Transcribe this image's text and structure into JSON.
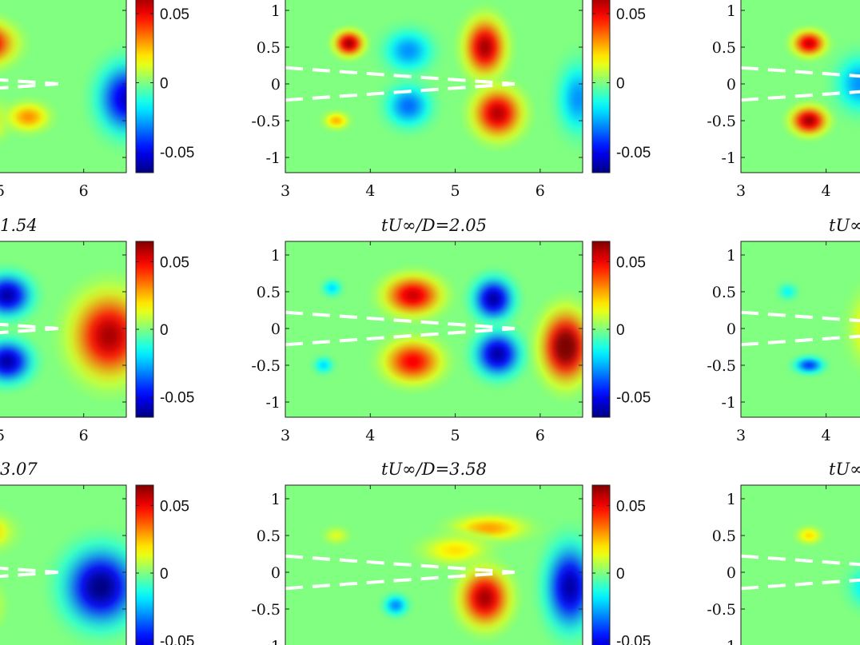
{
  "chart_data": {
    "type": "heatmap",
    "layout": "3x3 grid of contour panels, cropped",
    "colormap": "jet",
    "colors": {
      "dashed_lines": "#ffffff",
      "axes": "#222222"
    },
    "clim": [
      -0.065,
      0.065
    ],
    "colorbar": {
      "ticks": [
        0.05,
        0,
        -0.05
      ],
      "tick_labels": [
        "0.05",
        "0",
        "-0.05"
      ]
    },
    "xlim": [
      3,
      6.5
    ],
    "ylim": [
      -1.2,
      1.2
    ],
    "xticks": [
      3,
      4,
      5,
      6
    ],
    "xtick_labels": [
      "3",
      "4",
      "5",
      "6"
    ],
    "yticks": [
      1,
      0.5,
      0,
      -0.5,
      -1
    ],
    "ytick_labels": [
      "1",
      "0.5",
      "0",
      "-0.5",
      "-1"
    ],
    "partial_labels": {
      "left_col_x5": "5"
    },
    "dashed_lines": [
      {
        "x": [
          3,
          5.7
        ],
        "y": [
          0.22,
          0.0
        ]
      },
      {
        "x": [
          3,
          5.7
        ],
        "y": [
          -0.22,
          0.0
        ]
      }
    ],
    "rows": [
      {
        "titles": [
          "",
          "",
          ""
        ],
        "panels": [
          {
            "blobs": [
              {
                "x": 4.85,
                "y": 0.55,
                "a": 0.058,
                "sx": 0.35,
                "sy": 0.3
              },
              {
                "x": 4.7,
                "y": -0.5,
                "a": 0.05,
                "sx": 0.35,
                "sy": 0.28
              },
              {
                "x": 6.5,
                "y": -0.2,
                "a": -0.055,
                "sx": 0.35,
                "sy": 0.5
              },
              {
                "x": 5.35,
                "y": -0.45,
                "a": 0.03,
                "sx": 0.25,
                "sy": 0.2
              }
            ]
          },
          {
            "blobs": [
              {
                "x": 3.75,
                "y": 0.55,
                "a": 0.06,
                "sx": 0.18,
                "sy": 0.18
              },
              {
                "x": 3.6,
                "y": -0.5,
                "a": 0.025,
                "sx": 0.15,
                "sy": 0.12
              },
              {
                "x": 4.45,
                "y": 0.45,
                "a": -0.03,
                "sx": 0.3,
                "sy": 0.3
              },
              {
                "x": 4.45,
                "y": -0.3,
                "a": -0.035,
                "sx": 0.28,
                "sy": 0.3
              },
              {
                "x": 5.35,
                "y": 0.5,
                "a": 0.06,
                "sx": 0.25,
                "sy": 0.4
              },
              {
                "x": 5.5,
                "y": -0.4,
                "a": 0.058,
                "sx": 0.3,
                "sy": 0.35
              },
              {
                "x": 6.45,
                "y": -0.2,
                "a": -0.03,
                "sx": 0.25,
                "sy": 0.5
              }
            ]
          },
          {
            "blobs": [
              {
                "x": 3.8,
                "y": 0.55,
                "a": 0.055,
                "sx": 0.2,
                "sy": 0.18
              },
              {
                "x": 3.8,
                "y": -0.5,
                "a": 0.06,
                "sx": 0.22,
                "sy": 0.2
              },
              {
                "x": 4.4,
                "y": 0.0,
                "a": -0.03,
                "sx": 0.3,
                "sy": 0.4
              }
            ]
          }
        ]
      },
      {
        "titles": [
          "1.54",
          "tU∞/D=2.05",
          "tU∞"
        ],
        "panels": [
          {
            "blobs": [
              {
                "x": 5.1,
                "y": 0.45,
                "a": -0.06,
                "sx": 0.3,
                "sy": 0.3
              },
              {
                "x": 5.1,
                "y": -0.45,
                "a": -0.06,
                "sx": 0.3,
                "sy": 0.3
              },
              {
                "x": 6.3,
                "y": -0.1,
                "a": 0.06,
                "sx": 0.45,
                "sy": 0.6
              },
              {
                "x": 4.4,
                "y": 0.0,
                "a": 0.02,
                "sx": 0.25,
                "sy": 0.6
              }
            ]
          },
          {
            "blobs": [
              {
                "x": 3.55,
                "y": 0.55,
                "a": -0.02,
                "sx": 0.12,
                "sy": 0.12
              },
              {
                "x": 3.45,
                "y": -0.5,
                "a": -0.02,
                "sx": 0.12,
                "sy": 0.12
              },
              {
                "x": 4.5,
                "y": 0.45,
                "a": 0.055,
                "sx": 0.35,
                "sy": 0.28
              },
              {
                "x": 4.5,
                "y": -0.45,
                "a": 0.05,
                "sx": 0.35,
                "sy": 0.3
              },
              {
                "x": 5.45,
                "y": 0.4,
                "a": -0.06,
                "sx": 0.25,
                "sy": 0.3
              },
              {
                "x": 5.5,
                "y": -0.35,
                "a": -0.06,
                "sx": 0.28,
                "sy": 0.32
              },
              {
                "x": 6.3,
                "y": -0.25,
                "a": 0.07,
                "sx": 0.3,
                "sy": 0.5
              }
            ]
          },
          {
            "blobs": [
              {
                "x": 3.55,
                "y": 0.5,
                "a": -0.015,
                "sx": 0.12,
                "sy": 0.12
              },
              {
                "x": 3.8,
                "y": -0.5,
                "a": -0.04,
                "sx": 0.18,
                "sy": 0.12
              },
              {
                "x": 4.6,
                "y": 0.0,
                "a": 0.03,
                "sx": 0.3,
                "sy": 0.5
              }
            ]
          }
        ]
      },
      {
        "titles": [
          "3.07",
          "tU∞/D=3.58",
          "tU∞"
        ],
        "panels": [
          {
            "blobs": [
              {
                "x": 4.8,
                "y": 0.55,
                "a": 0.03,
                "sx": 0.35,
                "sy": 0.25
              },
              {
                "x": 4.6,
                "y": -0.45,
                "a": 0.06,
                "sx": 0.35,
                "sy": 0.35
              },
              {
                "x": 6.2,
                "y": -0.2,
                "a": -0.065,
                "sx": 0.45,
                "sy": 0.55
              }
            ]
          },
          {
            "blobs": [
              {
                "x": 3.6,
                "y": 0.5,
                "a": 0.012,
                "sx": 0.15,
                "sy": 0.12
              },
              {
                "x": 4.3,
                "y": -0.45,
                "a": -0.03,
                "sx": 0.15,
                "sy": 0.15
              },
              {
                "x": 5.4,
                "y": 0.6,
                "a": 0.028,
                "sx": 0.45,
                "sy": 0.18
              },
              {
                "x": 5.0,
                "y": 0.3,
                "a": 0.02,
                "sx": 0.4,
                "sy": 0.2
              },
              {
                "x": 5.35,
                "y": -0.35,
                "a": 0.06,
                "sx": 0.3,
                "sy": 0.4
              },
              {
                "x": 6.35,
                "y": -0.2,
                "a": -0.06,
                "sx": 0.3,
                "sy": 0.6
              }
            ]
          },
          {
            "blobs": [
              {
                "x": 3.8,
                "y": 0.5,
                "a": 0.02,
                "sx": 0.15,
                "sy": 0.12
              },
              {
                "x": 4.5,
                "y": -0.2,
                "a": -0.02,
                "sx": 0.25,
                "sy": 0.3
              }
            ]
          }
        ]
      }
    ]
  }
}
